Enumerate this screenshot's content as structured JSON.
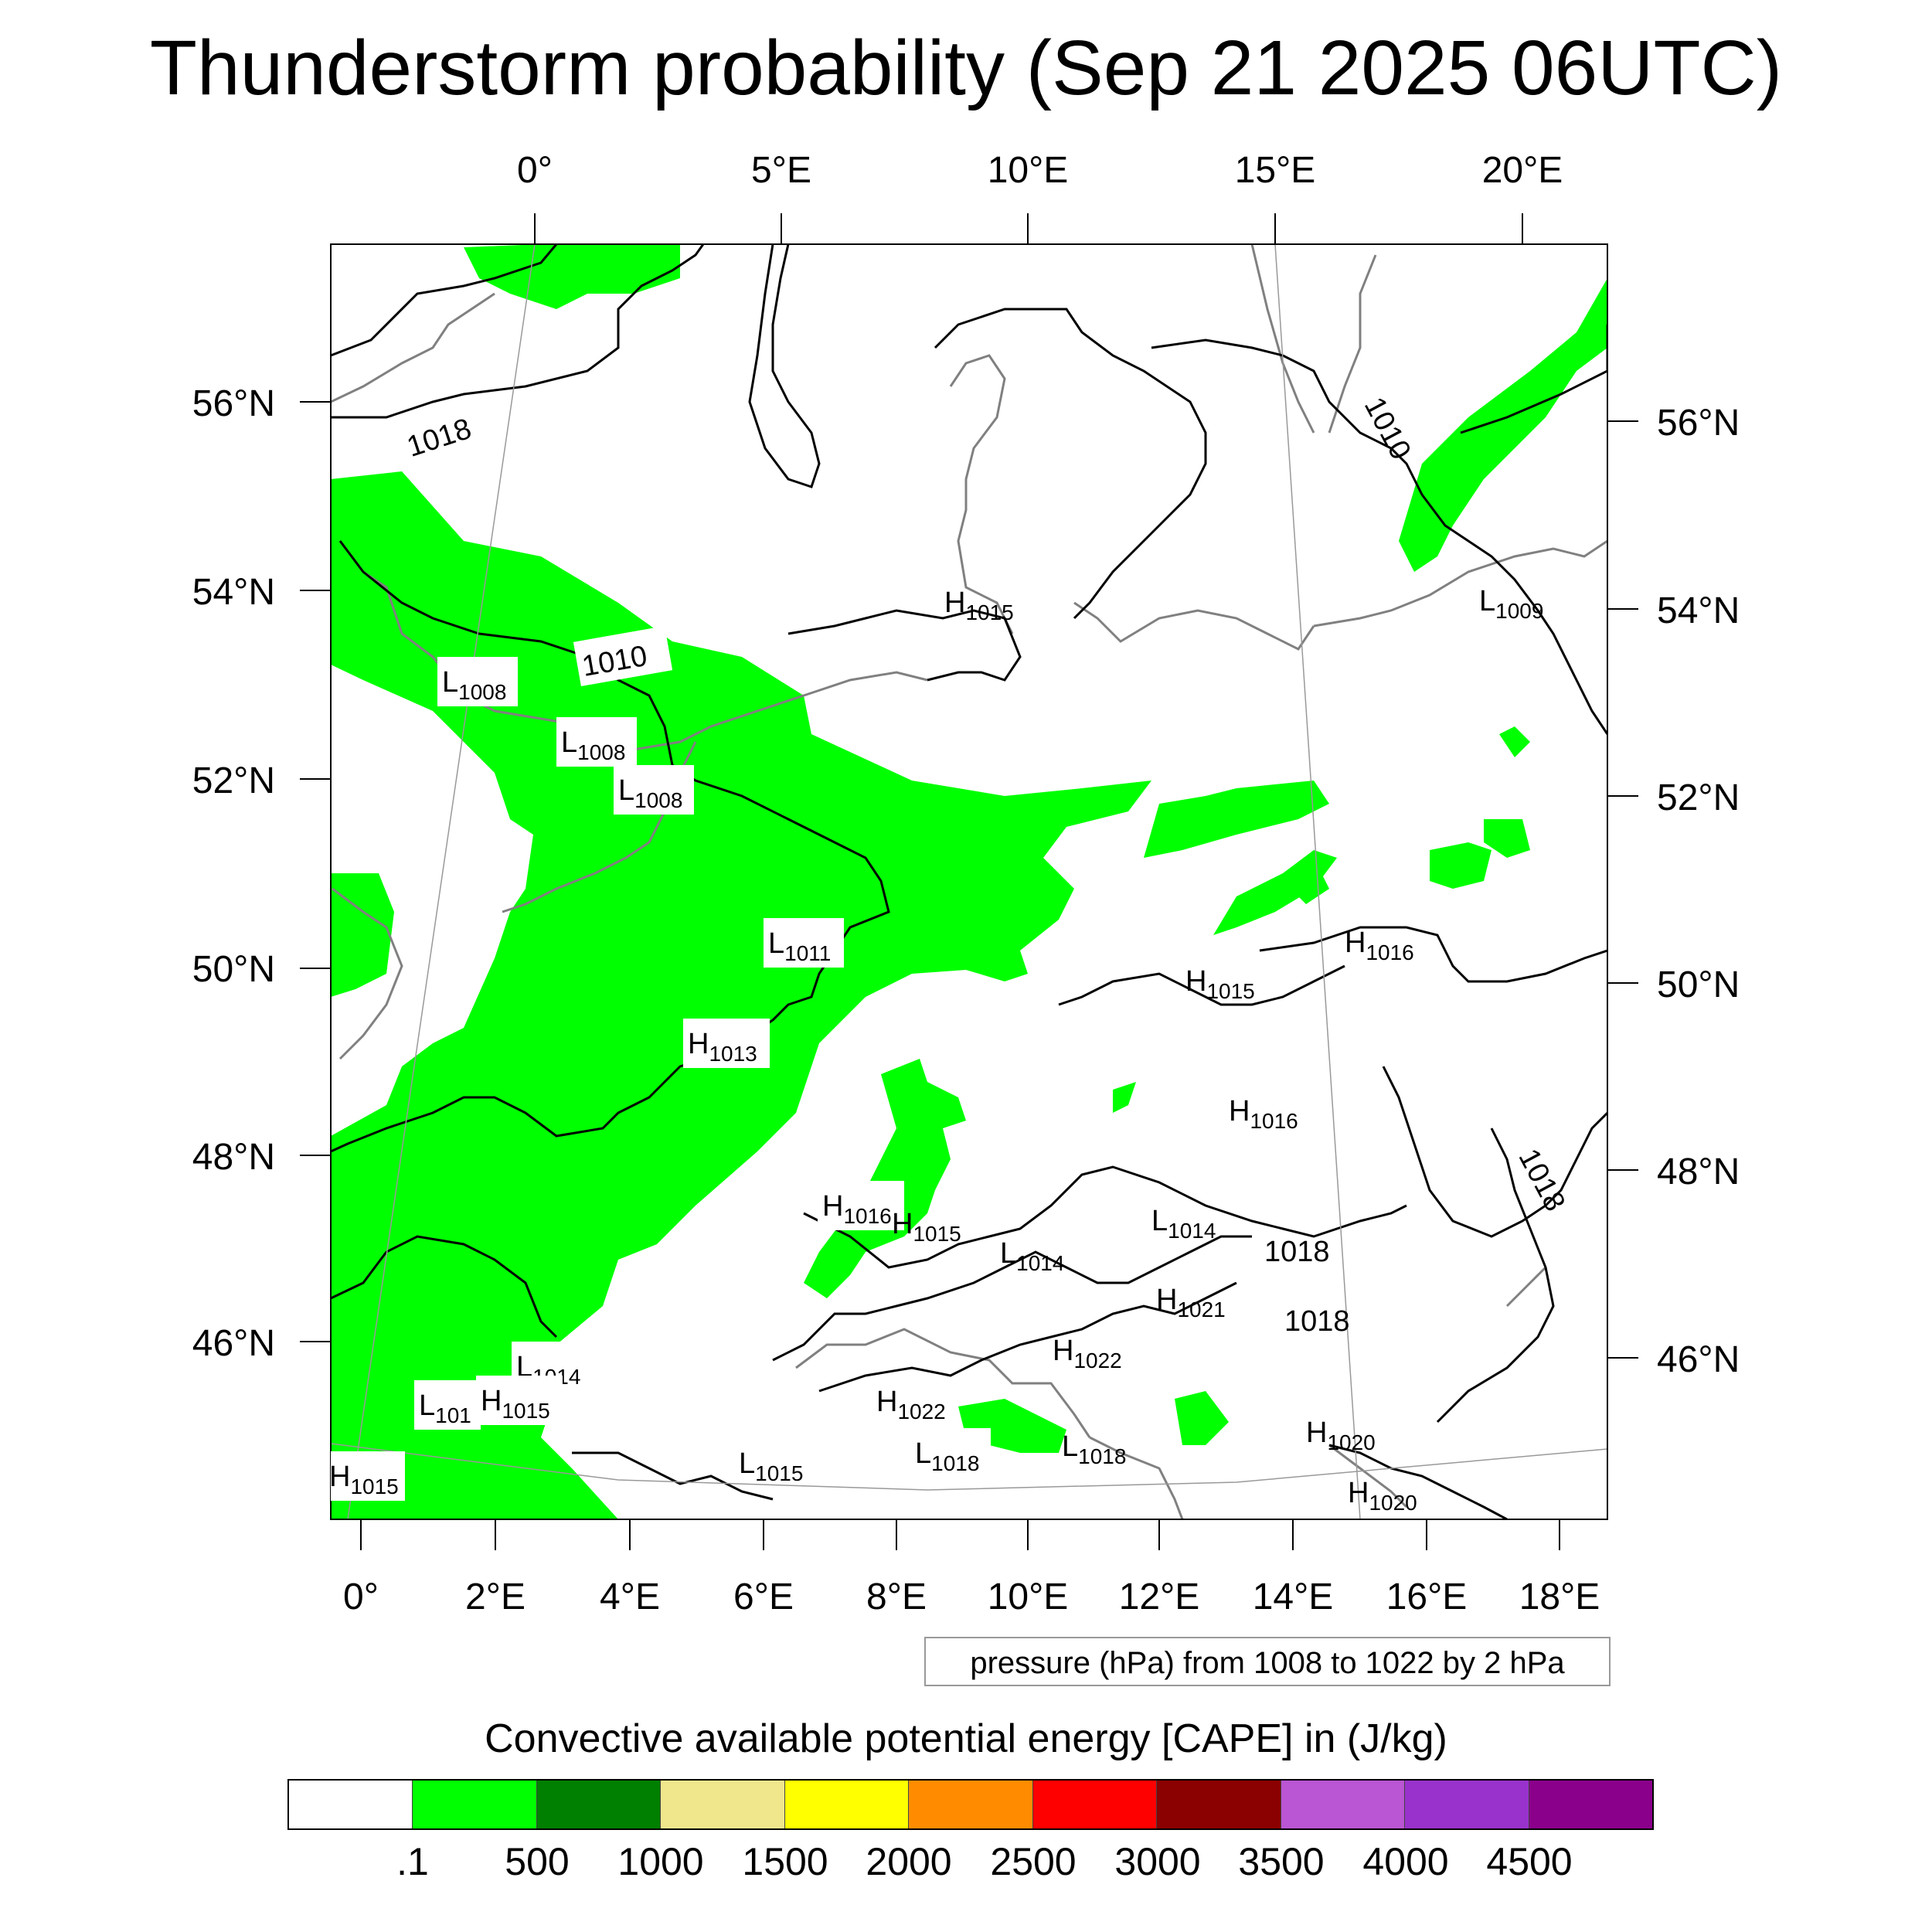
{
  "title": "Thunderstorm probability (Sep 21 2025 06UTC)",
  "map": {
    "lon_top": [
      "0°",
      "5°E",
      "10°E",
      "15°E",
      "20°E"
    ],
    "lon_bottom": [
      "0°",
      "2°E",
      "4°E",
      "6°E",
      "8°E",
      "10°E",
      "12°E",
      "14°E",
      "16°E",
      "18°E"
    ],
    "lat_left": [
      "56°N",
      "54°N",
      "52°N",
      "50°N",
      "48°N",
      "46°N"
    ],
    "lat_right": [
      "56°N",
      "54°N",
      "52°N",
      "50°N",
      "48°N",
      "46°N"
    ],
    "isobar_labels": [
      "1018",
      "1010",
      "1010",
      "1018",
      "1018",
      "1018"
    ],
    "pressure_centers": [
      {
        "type": "L",
        "value": "1008"
      },
      {
        "type": "L",
        "value": "1008"
      },
      {
        "type": "L",
        "value": "1008"
      },
      {
        "type": "H",
        "value": "1015"
      },
      {
        "type": "L",
        "value": "1009"
      },
      {
        "type": "L",
        "value": "1011"
      },
      {
        "type": "H",
        "value": "1013"
      },
      {
        "type": "H",
        "value": "1016"
      },
      {
        "type": "H",
        "value": "1015"
      },
      {
        "type": "H",
        "value": "1016"
      },
      {
        "type": "H",
        "value": "1016"
      },
      {
        "type": "H",
        "value": "1015"
      },
      {
        "type": "L",
        "value": "1014"
      },
      {
        "type": "L",
        "value": "1014"
      },
      {
        "type": "H",
        "value": "1021"
      },
      {
        "type": "H",
        "value": "1022"
      },
      {
        "type": "H",
        "value": "1022"
      },
      {
        "type": "L",
        "value": "1014"
      },
      {
        "type": "L",
        "value": "101"
      },
      {
        "type": "H",
        "value": "1015"
      },
      {
        "type": "L",
        "value": "1015"
      },
      {
        "type": "L",
        "value": "1018"
      },
      {
        "type": "L",
        "value": "1018"
      },
      {
        "type": "H",
        "value": "1020"
      },
      {
        "type": "H",
        "value": "1020"
      },
      {
        "type": "H",
        "value": "1015"
      }
    ],
    "colors": {
      "cape_fill": "#00ff00",
      "isobar": "#000000",
      "coast": "#808080"
    }
  },
  "pressure_note": "pressure (hPa) from 1008 to 1022 by 2 hPa",
  "colorbar": {
    "title": "Convective available potential energy [CAPE] in (J/kg)",
    "colors": [
      "#ffffff",
      "#00ff00",
      "#008000",
      "#f0e68c",
      "#ffff00",
      "#ff8c00",
      "#ff0000",
      "#8b0000",
      "#ba55d3",
      "#9932cc",
      "#8b008b"
    ],
    "labels": [
      ".1",
      "500",
      "1000",
      "1500",
      "2000",
      "2500",
      "3000",
      "3500",
      "4000",
      "4500"
    ]
  }
}
